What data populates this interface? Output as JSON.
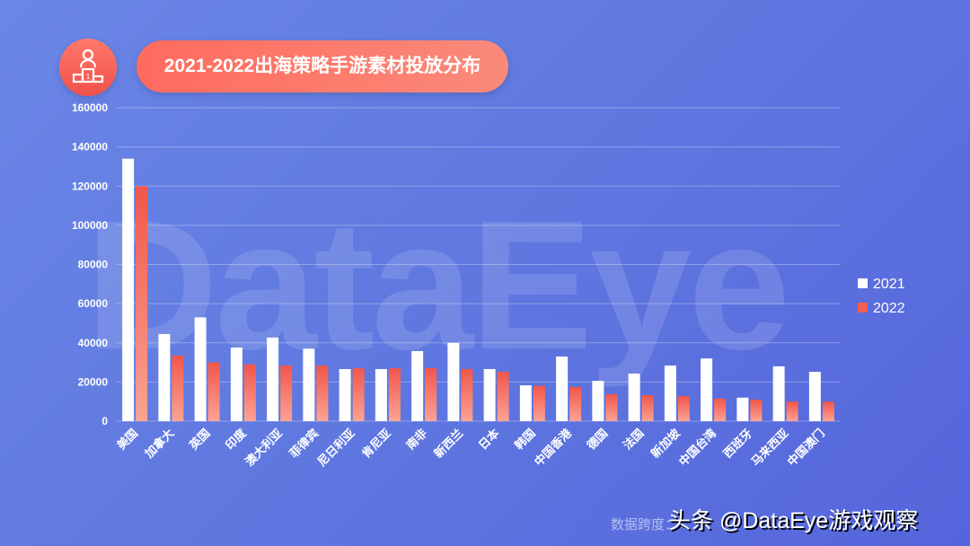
{
  "title": "2021-2022出海策略手游素材投放分布",
  "background_watermark": "DataEye",
  "footer_note": "数据跨度：",
  "credit": "头条 @DataEye游戏观察",
  "colors": {
    "bg": "#5f78e0",
    "s2021": "#ffffff",
    "s2022": "#f2604f",
    "accent": "#ff6b5e"
  },
  "icons": {
    "title": "podium-icon"
  },
  "chart_data": {
    "type": "bar",
    "title": "2021-2022出海策略手游素材投放分布",
    "categories": [
      "美国",
      "加拿大",
      "英国",
      "印度",
      "澳大利亚",
      "菲律宾",
      "尼日利亚",
      "肯尼亚",
      "南非",
      "新西兰",
      "日本",
      "韩国",
      "中国香港",
      "德国",
      "法国",
      "新加坡",
      "中国台湾",
      "西班牙",
      "马来西亚",
      "中国澳门"
    ],
    "series": [
      {
        "name": "2021",
        "values": [
          134000,
          44500,
          53000,
          37600,
          42700,
          37000,
          26600,
          26600,
          35800,
          40000,
          26600,
          18300,
          33000,
          20600,
          24300,
          28400,
          32000,
          12000,
          28000,
          25200
        ]
      },
      {
        "name": "2022",
        "values": [
          120000,
          33500,
          30000,
          29000,
          28400,
          28400,
          27000,
          27000,
          27000,
          26600,
          25200,
          18000,
          17400,
          13800,
          13300,
          12800,
          11500,
          11000,
          10000,
          10000
        ]
      }
    ],
    "ylim": [
      0,
      160000
    ],
    "yticks": [
      "0",
      "20000",
      "40000",
      "60000",
      "80000",
      "100000",
      "120000",
      "140000",
      "160000"
    ],
    "grid": true,
    "legend": "right"
  }
}
